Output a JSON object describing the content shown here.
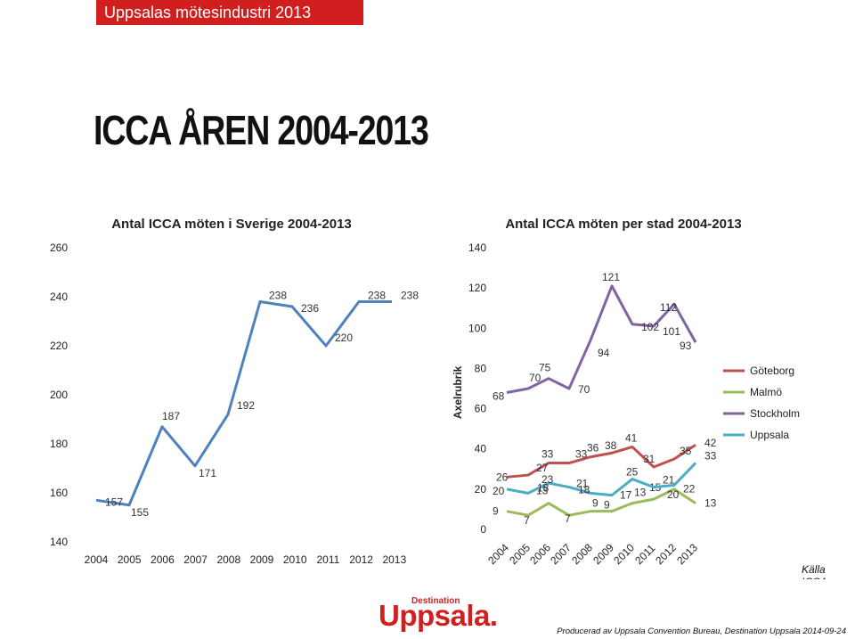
{
  "header": {
    "banner": "Uppsalas mötesindustri 2013",
    "title": "ICCA ÅREN 2004-2013"
  },
  "chart_data": [
    {
      "type": "line",
      "title": "Antal ICCA möten i Sverige 2004-2013",
      "categories": [
        "2004",
        "2005",
        "2006",
        "2007",
        "2008",
        "2009",
        "2010",
        "2011",
        "2012",
        "2013"
      ],
      "series": [
        {
          "values": [
            157,
            155,
            187,
            171,
            192,
            238,
            236,
            220,
            238,
            238
          ],
          "color": "#4f81bd"
        }
      ],
      "ylim": [
        140,
        260
      ],
      "yticks": [
        "140",
        "160",
        "180",
        "200",
        "220",
        "240",
        "260"
      ],
      "grid": false
    },
    {
      "type": "line",
      "title": "Antal ICCA möten per stad 2004-2013",
      "ylabel": "Axelrubrik",
      "categories": [
        "2004",
        "2005",
        "2006",
        "2007",
        "2008",
        "2009",
        "2010",
        "2011",
        "2012",
        "2013"
      ],
      "ylim": [
        0,
        140
      ],
      "yticks": [
        "0",
        "20",
        "40",
        "60",
        "80",
        "100",
        "120",
        "140"
      ],
      "legend": "right",
      "grid": false,
      "series": [
        {
          "name": "Göteborg",
          "color": "#c0504d",
          "values": [
            26,
            27,
            33,
            33,
            36,
            38,
            41,
            31,
            35,
            42
          ],
          "labels": [
            "26",
            "27",
            "33",
            "33",
            "36",
            "38",
            "41",
            "31",
            "35",
            "42"
          ]
        },
        {
          "name": "Malmö",
          "color": "#9bbb59",
          "values": [
            9,
            7,
            13,
            7,
            9,
            9,
            13,
            15,
            20,
            13
          ],
          "labels": [
            "9",
            "7",
            "13",
            "7",
            "9",
            "9",
            "13",
            "15",
            "20",
            "13"
          ]
        },
        {
          "name": "Stockholm",
          "color": "#8064a2",
          "values": [
            68,
            70,
            75,
            70,
            94,
            121,
            102,
            101,
            112,
            93
          ],
          "labels": [
            "68",
            "70",
            "75",
            "70",
            "94",
            "121",
            "102",
            "101",
            "112",
            "93"
          ]
        },
        {
          "name": "Uppsala",
          "color": "#4bacc6",
          "values": [
            20,
            18,
            23,
            21,
            18,
            17,
            25,
            21,
            22,
            33
          ],
          "labels": [
            "20",
            "18",
            "23",
            "21",
            "18",
            "17",
            "25",
            "21",
            "22",
            "33"
          ]
        }
      ]
    }
  ],
  "footer": {
    "source": "Källa ICCA.",
    "logo_small": "Destination",
    "logo_big": "Uppsala.",
    "credit": "Producerad av Uppsala Convention Bureau, Destination Uppsala 2014-09-24"
  }
}
